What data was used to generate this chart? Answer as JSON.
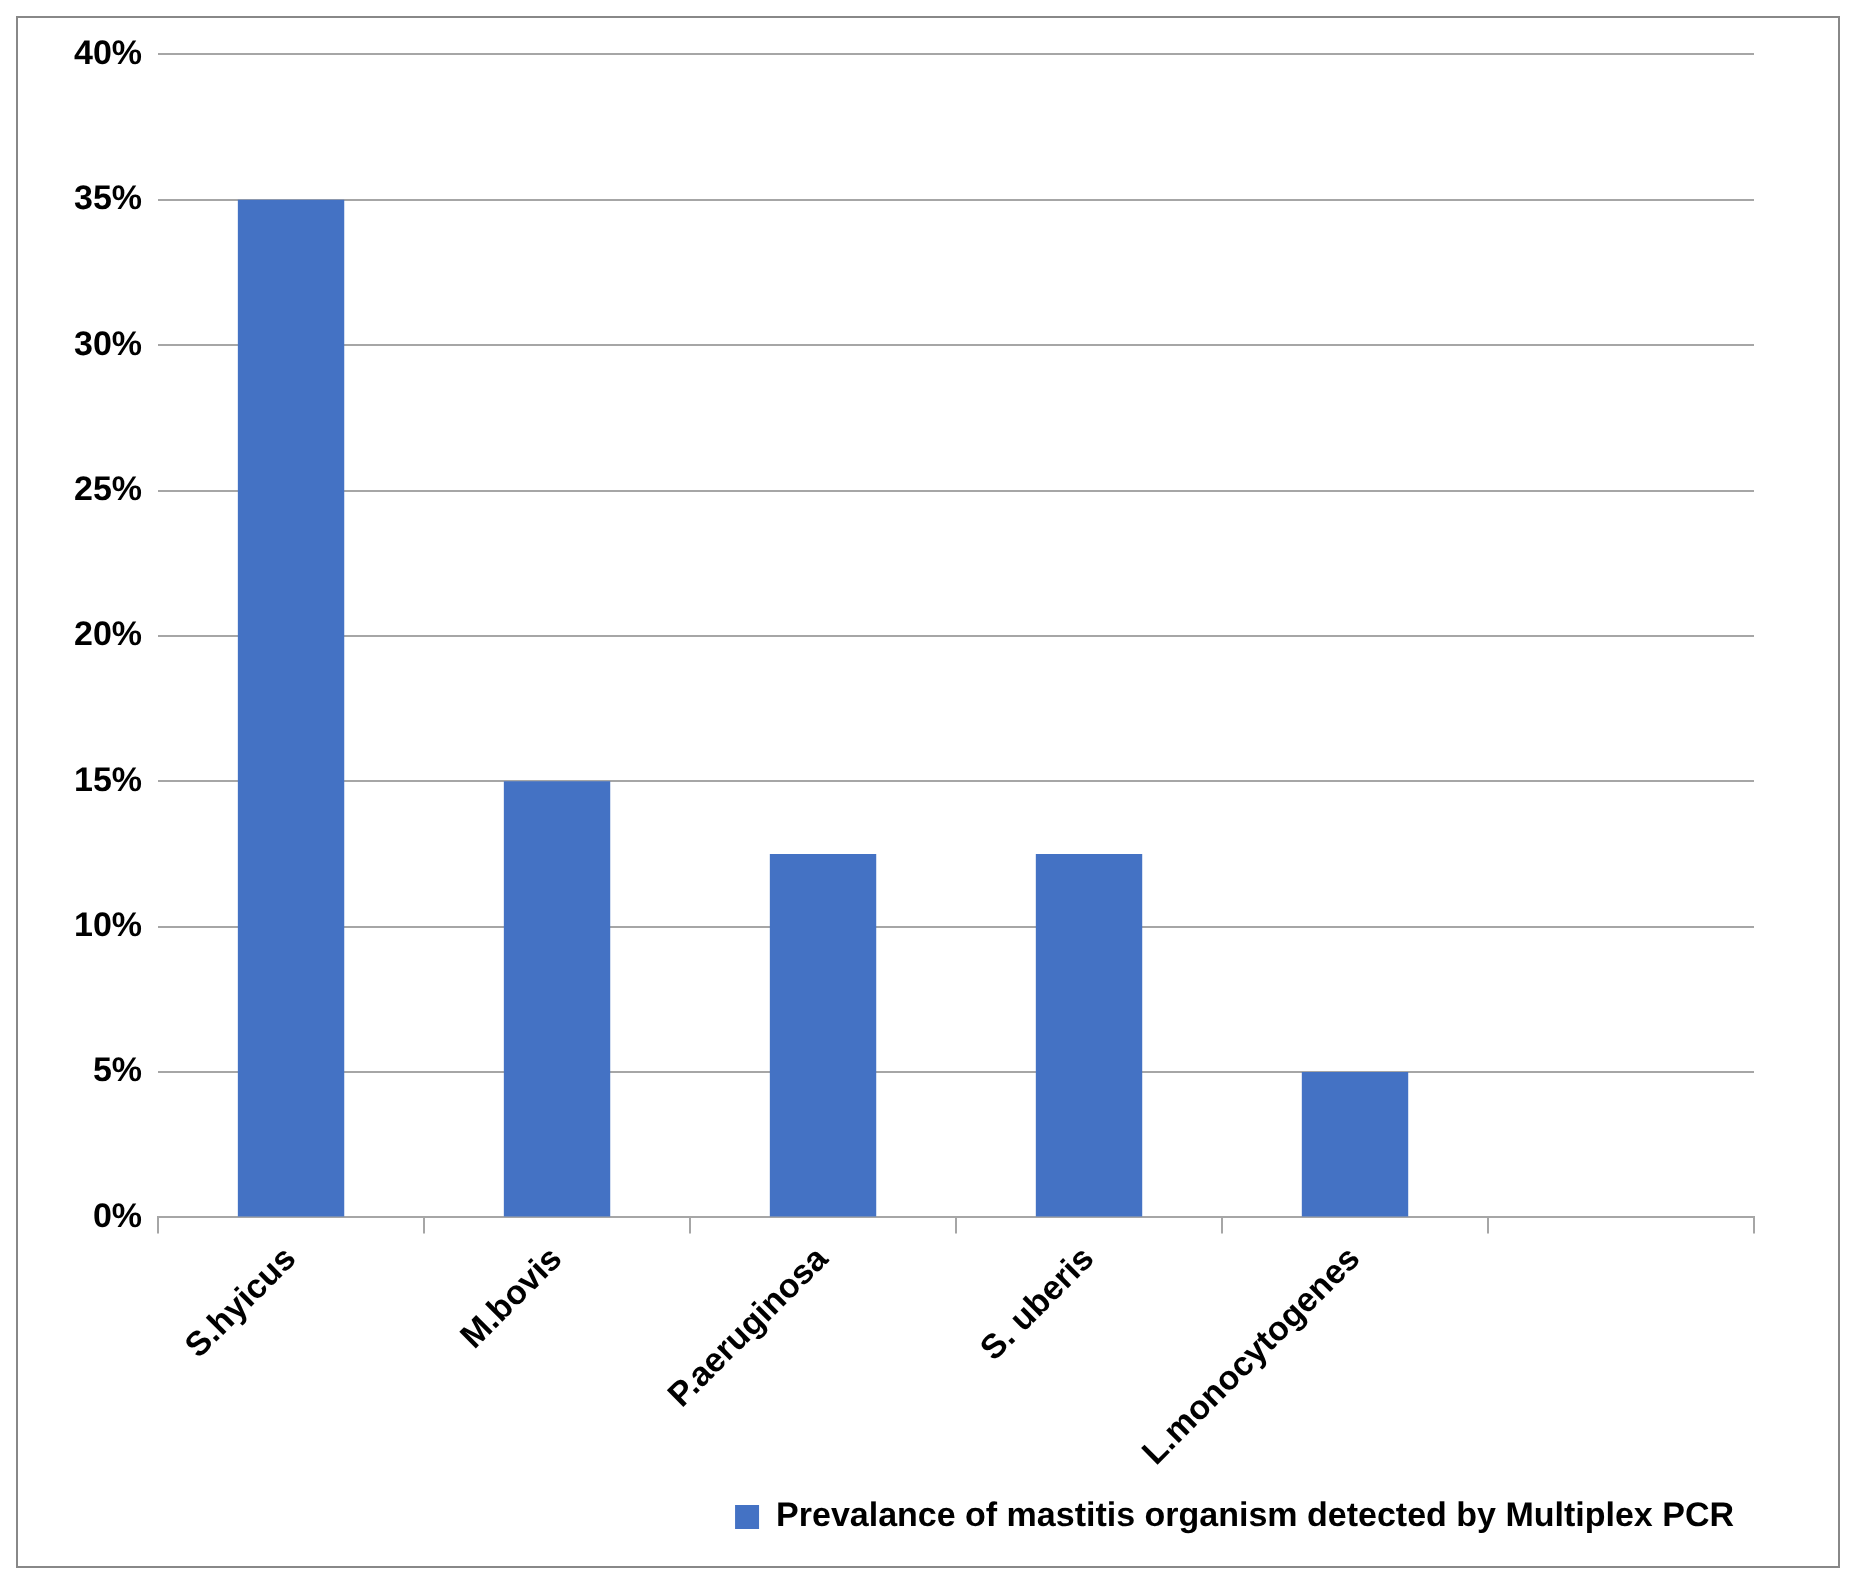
{
  "chart_data": {
    "type": "bar",
    "categories": [
      "S.hyicus",
      "M.bovis",
      "P.aeruginosa",
      "S. uberis",
      "L.monocytogenes",
      null
    ],
    "series": [
      {
        "name": "Prevalance of mastitis organism detected by Multiplex PCR",
        "color": "#4472c4",
        "values": [
          35,
          15,
          12.5,
          12.5,
          5,
          null
        ]
      }
    ],
    "ylim": [
      0,
      40
    ],
    "yticks": [
      {
        "value": 0,
        "label": "0%"
      },
      {
        "value": 5,
        "label": "5%"
      },
      {
        "value": 10,
        "label": "10%"
      },
      {
        "value": 15,
        "label": "15%"
      },
      {
        "value": 20,
        "label": "20%"
      },
      {
        "value": 25,
        "label": "25%"
      },
      {
        "value": 30,
        "label": "30%"
      },
      {
        "value": 35,
        "label": "35%"
      },
      {
        "value": 40,
        "label": "40%"
      }
    ],
    "grid": "y",
    "legend": "bottom right"
  }
}
